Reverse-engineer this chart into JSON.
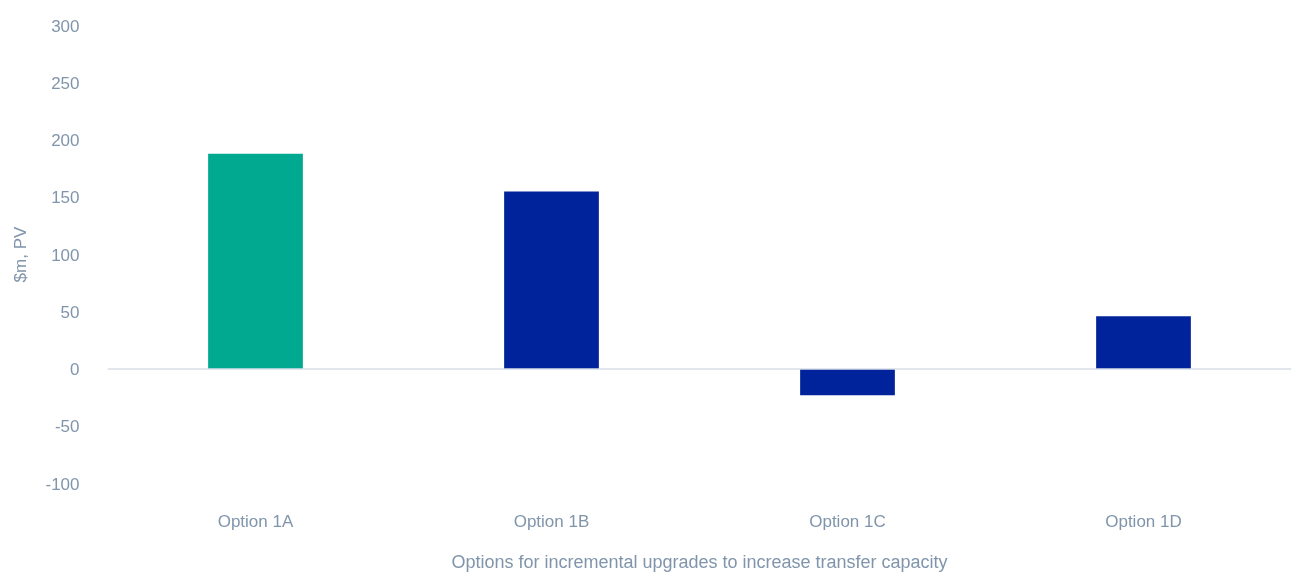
{
  "chart_data": {
    "type": "bar",
    "xlabel": "Options for incremental upgrades to increase transfer capacity",
    "ylabel": "$m, PV",
    "categories": [
      "Option 1A",
      "Option 1B",
      "Option 1C",
      "Option 1D"
    ],
    "values": [
      188,
      155,
      -23,
      46
    ],
    "colors": [
      "#00a98f",
      "#00239c",
      "#00239c",
      "#00239c"
    ],
    "ylim": [
      -100,
      300
    ],
    "yticks": [
      -100,
      -50,
      0,
      50,
      100,
      150,
      200,
      250,
      300
    ],
    "ref_lines": [
      {
        "axis": "y",
        "value": 0,
        "color": "#d9dfe7"
      }
    ]
  }
}
